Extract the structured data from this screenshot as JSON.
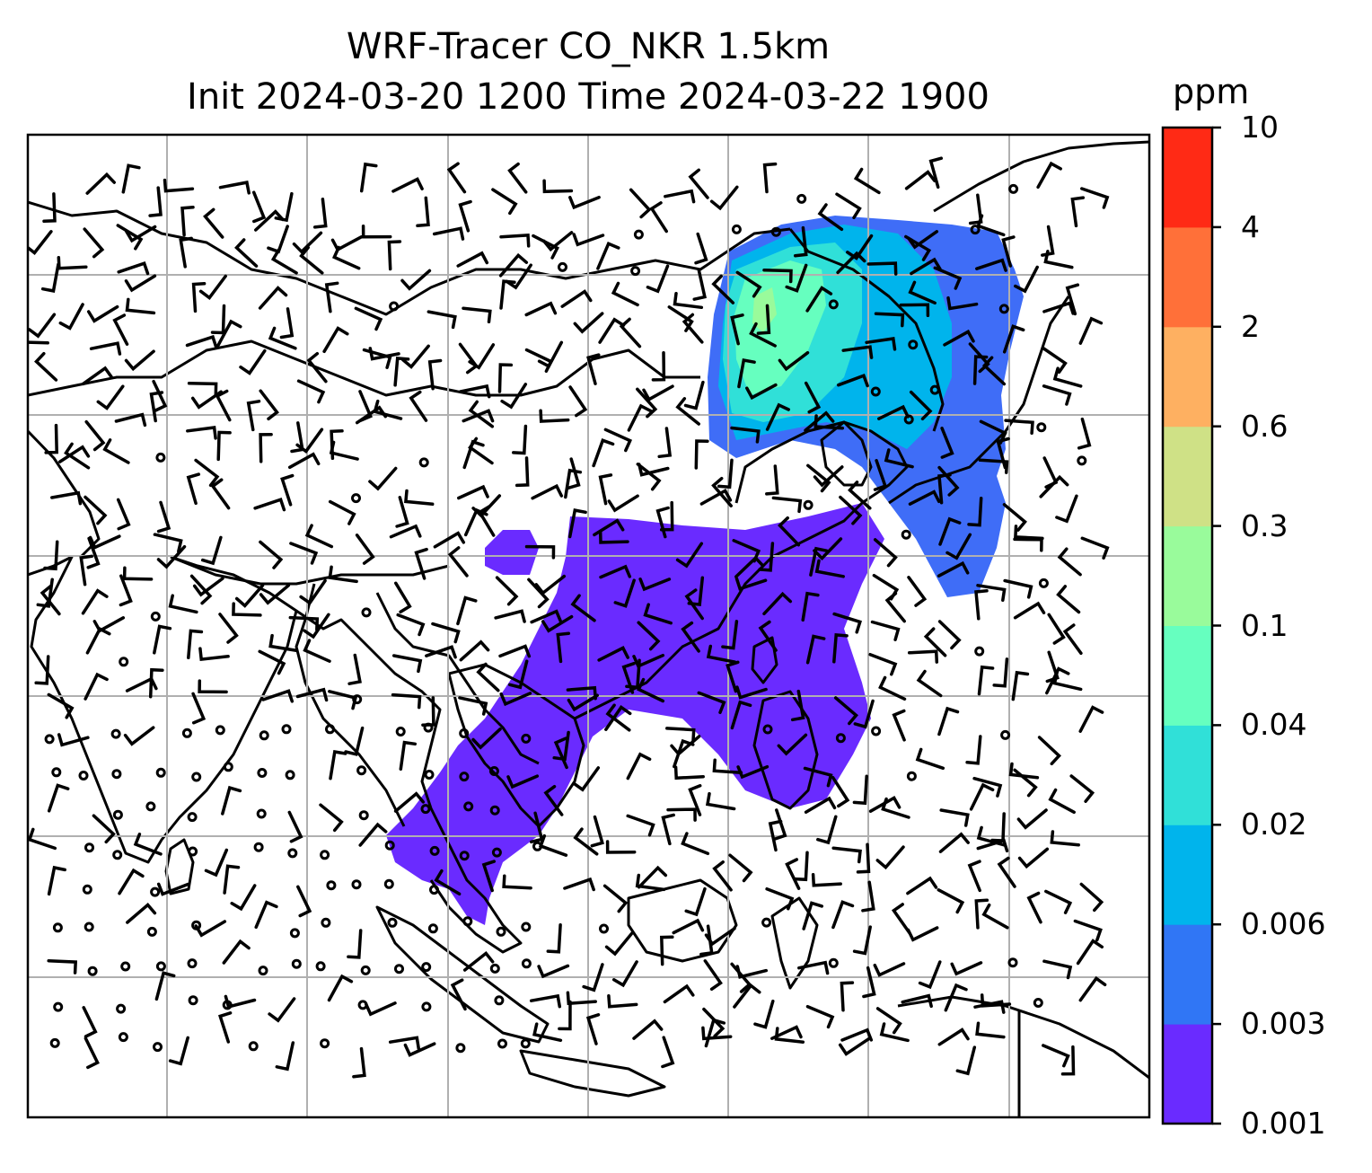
{
  "title": {
    "line1": "WRF-Tracer CO_NKR 1.5km",
    "line2": "Init 2024-03-20 1200 Time 2024-03-22 1900"
  },
  "colorbar": {
    "unit": "ppm",
    "ticks": [
      "10",
      "4",
      "2",
      "0.6",
      "0.3",
      "0.1",
      "0.04",
      "0.02",
      "0.006",
      "0.003",
      "0.001"
    ],
    "colors": [
      "#6a2bff",
      "#3076f5",
      "#00b4ec",
      "#30e0d8",
      "#66ffbf",
      "#99fb9b",
      "#cfe186",
      "#feb061",
      "#ff7039",
      "#ff2a15"
    ]
  },
  "map": {
    "domain_lon": [
      60,
      140
    ],
    "domain_lat": [
      -12,
      58
    ],
    "plume_colors": {
      "low": "#6a2bff",
      "low2": "#3f6df7",
      "mid": "#00b4ec",
      "midhigh": "#30e0d8",
      "high": "#66ffbf",
      "highest": "#99fb9b"
    }
  }
}
